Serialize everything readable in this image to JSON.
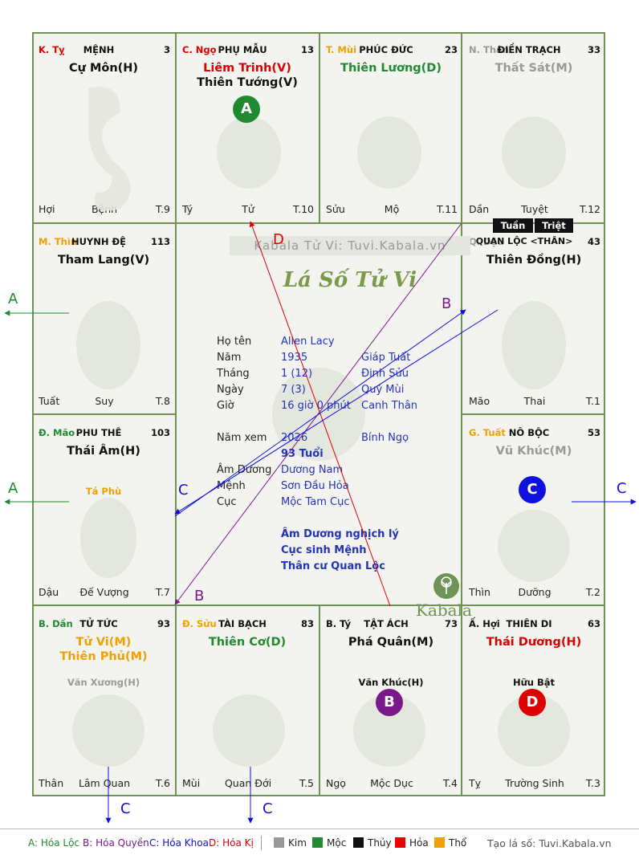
{
  "palaces": [
    {
      "stem": "K. Tỵ",
      "stem_color": "#dd0000",
      "name": "MỆNH",
      "num": "3",
      "stars": [
        {
          "t": "Cự Môn(H)",
          "c": "#111111"
        }
      ],
      "minor": "",
      "b1": "Hợi",
      "b2": "Bệnh",
      "b3": "T.9"
    },
    {
      "stem": "C. Ngọ",
      "stem_color": "#dd0000",
      "name": "PHỤ MẪU",
      "num": "13",
      "stars": [
        {
          "t": "Liêm Trinh(V)",
          "c": "#dd0000"
        },
        {
          "t": "Thiên Tướng(V)",
          "c": "#111111"
        }
      ],
      "minor": "",
      "b1": "Tý",
      "b2": "Tử",
      "b3": "T.10"
    },
    {
      "stem": "T. Mùi",
      "stem_color": "#f0a000",
      "name": "PHÚC ĐỨC",
      "num": "23",
      "stars": [
        {
          "t": "Thiên Lương(D)",
          "c": "#1f8a2f"
        }
      ],
      "minor": "",
      "b1": "Sửu",
      "b2": "Mộ",
      "b3": "T.11"
    },
    {
      "stem": "N. Thân",
      "stem_color": "#999999",
      "name": "ĐIỀN TRẠCH",
      "num": "33",
      "stars": [
        {
          "t": "Thất Sát(M)",
          "c": "#999999"
        }
      ],
      "minor": "",
      "b1": "Dần",
      "b2": "Tuyệt",
      "b3": "T.12"
    },
    {
      "stem": "M. Thìn",
      "stem_color": "#f0a000",
      "name": "HUYNH ĐỆ",
      "num": "113",
      "stars": [
        {
          "t": "Tham Lang(V)",
          "c": "#111111"
        }
      ],
      "minor": "",
      "b1": "Tuất",
      "b2": "Suy",
      "b3": "T.8"
    },
    {
      "stem": "Q. Dậu",
      "stem_color": "#999999",
      "name": "QUAN LỘC <THÂN>",
      "num": "43",
      "stars": [
        {
          "t": "Thiên Đồng(H)",
          "c": "#111111"
        }
      ],
      "minor": "",
      "b1": "Mão",
      "b2": "Thai",
      "b3": "T.1"
    },
    {
      "stem": "Đ. Mão",
      "stem_color": "#1f8a2f",
      "name": "PHU THÊ",
      "num": "103",
      "stars": [
        {
          "t": "Thái Âm(H)",
          "c": "#111111"
        }
      ],
      "minor": "Tả Phù",
      "minor_color": "#f0a000",
      "b1": "Dậu",
      "b2": "Đế Vượng",
      "b3": "T.7"
    },
    {
      "stem": "G. Tuất",
      "stem_color": "#f0a000",
      "name": "NÔ BỘC",
      "num": "53",
      "stars": [
        {
          "t": "Vũ Khúc(M)",
          "c": "#999999"
        }
      ],
      "minor": "",
      "b1": "Thìn",
      "b2": "Dưỡng",
      "b3": "T.2"
    },
    {
      "stem": "B. Dần",
      "stem_color": "#1f8a2f",
      "name": "TỬ TỨC",
      "num": "93",
      "stars": [
        {
          "t": "Tử Vi(M)",
          "c": "#f0a000"
        },
        {
          "t": "Thiên Phủ(M)",
          "c": "#f0a000"
        }
      ],
      "minor": "Văn Xương(H)",
      "minor_color": "#999999",
      "b1": "Thân",
      "b2": "Lâm Quan",
      "b3": "T.6"
    },
    {
      "stem": "Đ. Sửu",
      "stem_color": "#f0a000",
      "name": "TÀI BẠCH",
      "num": "83",
      "stars": [
        {
          "t": "Thiên Cơ(D)",
          "c": "#1f8a2f"
        }
      ],
      "minor": "",
      "b1": "Mùi",
      "b2": "Quan Đới",
      "b3": "T.5"
    },
    {
      "stem": "B. Tý",
      "stem_color": "#111111",
      "name": "TẬT ÁCH",
      "num": "73",
      "stars": [
        {
          "t": "Phá Quân(M)",
          "c": "#111111"
        }
      ],
      "minor": "Văn Khúc(H)",
      "minor_color": "#111111",
      "b1": "Ngọ",
      "b2": "Mộc Dục",
      "b3": "T.4"
    },
    {
      "stem": "Ấ. Hợi",
      "stem_color": "#111111",
      "name": "THIÊN DI",
      "num": "63",
      "stars": [
        {
          "t": "Thái Dương(H)",
          "c": "#dd0000"
        }
      ],
      "minor": "Hữu Bật",
      "minor_color": "#111111",
      "b1": "Tỵ",
      "b2": "Trường Sinh",
      "b3": "T.3"
    }
  ],
  "tuan": "Tuần",
  "triet": "Triệt",
  "badges": {
    "a": "A",
    "b": "B",
    "c": "C",
    "d": "D"
  },
  "center": {
    "watermark": "Kabala Tử Vi: Tuvi.Kabala.vn",
    "title": "Lá Số Tử Vi",
    "rows": [
      {
        "l": "Họ tên",
        "v1": "Allen Lacy",
        "v2": ""
      },
      {
        "l": "Năm",
        "v1": "1935",
        "v2": "Giáp Tuất"
      },
      {
        "l": "Tháng",
        "v1": "1  (12)",
        "v2": "Đinh Sửu"
      },
      {
        "l": "Ngày",
        "v1": "7  (3)",
        "v2": "Quý Mùi"
      },
      {
        "l": "Giờ",
        "v1": "16 giờ 0 phút",
        "v2": "Canh Thân"
      },
      {
        "l": "Năm xem",
        "v1": "2026",
        "v2": "Bính Ngọ"
      },
      {
        "l": "",
        "v1": "93 Tuổi",
        "v2": ""
      },
      {
        "l": "Âm Dương",
        "v1": "Dương Nam",
        "v2": ""
      },
      {
        "l": "Mệnh",
        "v1": "Sơn Đầu Hỏa",
        "v2": ""
      },
      {
        "l": "Cục",
        "v1": "Mộc Tam Cục",
        "v2": ""
      }
    ],
    "notes": [
      "Âm Dương nghịch lý",
      "Cục sinh Mệnh",
      "Thân cư Quan Lộc"
    ],
    "logo": "Kabala"
  },
  "arrows": {
    "a": "A",
    "b": "B",
    "c": "C",
    "d": "D"
  },
  "legend": {
    "a": "A: Hóa Lộc",
    "b": "B: Hóa Quyền",
    "c": "C: Hóa Khoa",
    "d": "D: Hóa Kị",
    "kim": "Kim",
    "moc": "Mộc",
    "thuy": "Thủy",
    "hoa": "Hỏa",
    "tho": "Thổ",
    "credit": "Tạo lá số: Tuvi.Kabala.vn"
  },
  "colors": {
    "grid": "#6f9255",
    "hoa_loc": "#1f8a2f",
    "hoa_quyen": "#7a1a8a",
    "hoa_khoa": "#1010dd",
    "hoa_ki": "#dd0000",
    "kim": "#999999",
    "moc": "#1f8a2f",
    "thuy": "#111111",
    "hoa": "#ee0000",
    "tho": "#f0a000"
  }
}
